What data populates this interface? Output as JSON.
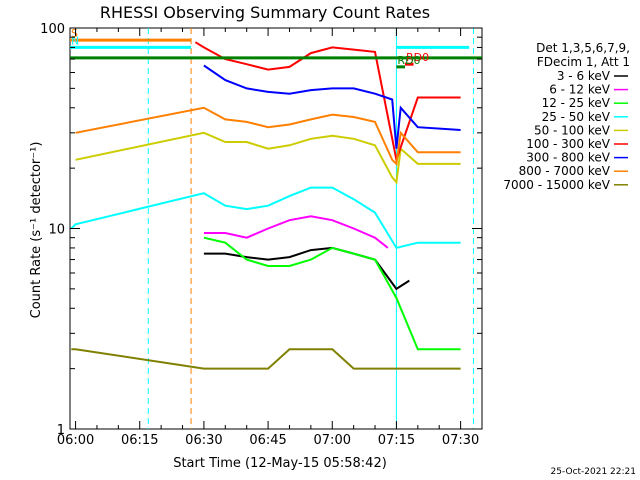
{
  "chart_data": {
    "type": "line",
    "title": "RHESSI Observing Summary Count Rates",
    "xlabel": "Start Time (12-May-15 05:58:42)",
    "ylabel": "Count Rate (s⁻¹ detector⁻¹)",
    "y_scale": "log",
    "ylim": [
      1,
      100
    ],
    "xlim": [
      "05:58:42",
      "07:35:00"
    ],
    "x_ticks": [
      "06:00",
      "06:15",
      "06:30",
      "06:45",
      "07:00",
      "07:15",
      "07:30"
    ],
    "y_ticks": [
      "1",
      "10",
      "100"
    ],
    "legend_header": [
      "Det 1,3,5,6,7,9,",
      "FDecim 1, Att 1"
    ],
    "legend_position": "right",
    "grid": false,
    "series": [
      {
        "name": "3 - 6 keV",
        "color": "#000000",
        "x": [
          "06:30",
          "06:35",
          "06:40",
          "06:45",
          "06:50",
          "06:55",
          "07:00",
          "07:05",
          "07:10",
          "07:15",
          "07:18"
        ],
        "values": [
          7.5,
          7.5,
          7.2,
          7.0,
          7.2,
          7.8,
          8.0,
          7.5,
          7.0,
          5.0,
          5.5
        ]
      },
      {
        "name": "6 - 12 keV",
        "color": "#ff00ff",
        "x": [
          "06:30",
          "06:35",
          "06:40",
          "06:45",
          "06:50",
          "06:55",
          "07:00",
          "07:05",
          "07:10",
          "07:13"
        ],
        "values": [
          9.5,
          9.5,
          9.0,
          10.0,
          11.0,
          11.5,
          11.0,
          10.0,
          9.0,
          8.0
        ]
      },
      {
        "name": "12 - 25 keV",
        "color": "#00ff00",
        "x": [
          "06:30",
          "06:35",
          "06:40",
          "06:45",
          "06:50",
          "06:55",
          "07:00",
          "07:05",
          "07:10",
          "07:15",
          "07:20",
          "07:30"
        ],
        "values": [
          9.0,
          8.5,
          7.0,
          6.5,
          6.5,
          7.0,
          8.0,
          7.5,
          7.0,
          4.5,
          2.5,
          2.5
        ]
      },
      {
        "name": "25 - 50 keV",
        "color": "#00ffff",
        "x": [
          "05:59",
          "06:00",
          "06:30",
          "06:35",
          "06:40",
          "06:45",
          "06:50",
          "06:55",
          "07:00",
          "07:05",
          "07:10",
          "07:15",
          "07:20",
          "07:25",
          "07:30"
        ],
        "values": [
          10.0,
          10.5,
          15.0,
          13.0,
          12.5,
          13.0,
          14.5,
          16.0,
          16.0,
          14.0,
          12.0,
          8.0,
          8.5,
          8.5,
          8.5
        ]
      },
      {
        "name": "50 - 100 keV",
        "color": "#cccc00",
        "x": [
          "06:00",
          "06:30",
          "06:35",
          "06:40",
          "06:45",
          "06:50",
          "06:55",
          "07:00",
          "07:05",
          "07:10",
          "07:14",
          "07:15",
          "07:16",
          "07:20",
          "07:30"
        ],
        "values": [
          22,
          30,
          27,
          27,
          25,
          26,
          28,
          29,
          28,
          26,
          18,
          17,
          25,
          21,
          21
        ]
      },
      {
        "name": "100 - 300 keV",
        "color": "#ff0000",
        "x": [
          "06:28",
          "06:30",
          "06:35",
          "06:40",
          "06:45",
          "06:50",
          "06:55",
          "07:00",
          "07:05",
          "07:10",
          "07:15",
          "07:20",
          "07:30"
        ],
        "values": [
          85,
          80,
          70,
          66,
          62,
          64,
          75,
          80,
          78,
          76,
          22,
          45,
          45
        ]
      },
      {
        "name": "300 - 800 keV",
        "color": "#0000ff",
        "x": [
          "06:30",
          "06:35",
          "06:40",
          "06:45",
          "06:50",
          "06:55",
          "07:00",
          "07:05",
          "07:10",
          "07:14",
          "07:15",
          "07:16",
          "07:20",
          "07:30"
        ],
        "values": [
          65,
          55,
          50,
          48,
          47,
          49,
          50,
          50,
          47,
          44,
          25,
          40,
          32,
          31
        ]
      },
      {
        "name": "800 - 7000 keV",
        "color": "#ff8000",
        "x": [
          "06:00",
          "06:30",
          "06:35",
          "06:40",
          "06:45",
          "06:50",
          "06:55",
          "07:00",
          "07:05",
          "07:10",
          "07:14",
          "07:15",
          "07:16",
          "07:20",
          "07:30"
        ],
        "values": [
          30,
          40,
          35,
          34,
          32,
          33,
          35,
          37,
          36,
          34,
          22,
          21,
          30,
          24,
          24
        ]
      },
      {
        "name": "7000 - 15000 keV",
        "color": "#808000",
        "x": [
          "05:59",
          "06:00",
          "06:30",
          "06:40",
          "06:45",
          "06:50",
          "06:55",
          "07:00",
          "07:05",
          "07:10",
          "07:15",
          "07:20",
          "07:30"
        ],
        "values": [
          2.5,
          2.5,
          2.0,
          2.0,
          2.0,
          2.5,
          2.5,
          2.5,
          2.0,
          2.0,
          2.0,
          2.0,
          2.0
        ]
      }
    ],
    "flag_bars": [
      {
        "label": "S",
        "color": "#ff8000",
        "x": [
          "05:58:42",
          "06:27"
        ],
        "level": 87
      },
      {
        "label": "N",
        "color": "#00ffff",
        "x": [
          "05:58:42",
          "06:27"
        ],
        "level": 80
      },
      {
        "label": "",
        "color": "#00ffff",
        "x": [
          "07:15",
          "07:32"
        ],
        "level": 80
      },
      {
        "label": "",
        "color": "#008000",
        "x": [
          "05:58:42",
          "07:35"
        ],
        "level": 71
      },
      {
        "label": "RD0",
        "color": "#ff0000",
        "x": [
          "07:17",
          "07:19"
        ],
        "level": 66
      },
      {
        "label": "RD0",
        "color": "#008000",
        "x": [
          "07:15",
          "07:17"
        ],
        "level": 64
      }
    ],
    "vlines": [
      {
        "color": "#00ffff",
        "x": "06:17",
        "style": "dashed"
      },
      {
        "color": "#ff8000",
        "x": "06:27",
        "style": "dashed"
      },
      {
        "color": "#00ffff",
        "x": "07:15",
        "style": "solid"
      },
      {
        "color": "#00ffff",
        "x": "07:33",
        "style": "dashed"
      }
    ],
    "footer_stamp": "25-Oct-2021 22:21"
  }
}
